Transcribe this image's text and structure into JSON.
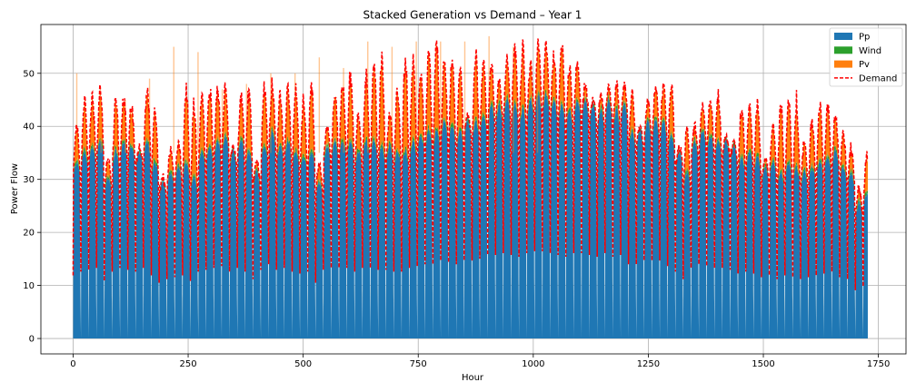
{
  "chart_data": {
    "type": "area",
    "stacked": true,
    "title": "Stacked Generation vs Demand – Year 1",
    "xlabel": "Hour",
    "ylabel": "Power Flow",
    "xlim": [
      -70,
      1810
    ],
    "ylim": [
      -2.9,
      59.2
    ],
    "xticks": [
      0,
      250,
      500,
      750,
      1000,
      1250,
      1500,
      1750
    ],
    "yticks": [
      0,
      10,
      20,
      30,
      40,
      50
    ],
    "grid": true,
    "legend_position": "top-right",
    "hours": 1728,
    "series": [
      {
        "name": "Pp",
        "color": "#1f77b4",
        "kind": "area",
        "daily_base": [
          34,
          36,
          37,
          38,
          31,
          36,
          38,
          37,
          36,
          38,
          34,
          30,
          32,
          33,
          34,
          31,
          36,
          37,
          38,
          39,
          36,
          38,
          36,
          32,
          37,
          40,
          37,
          38,
          36,
          35,
          36,
          30,
          37,
          38,
          38,
          38,
          36,
          38,
          38,
          37,
          37,
          36,
          36,
          38,
          39,
          40,
          40,
          42,
          41,
          40,
          42,
          42,
          43,
          45,
          45,
          46,
          45,
          44,
          46,
          47,
          47,
          46,
          45,
          44,
          46,
          46,
          45,
          44,
          46,
          44,
          45,
          40,
          40,
          42,
          42,
          42,
          39,
          36,
          32,
          38,
          40,
          39,
          38,
          38,
          37,
          35,
          36,
          35,
          33,
          34,
          32,
          34,
          33,
          32,
          33,
          34,
          35,
          36,
          33,
          32,
          26,
          28
        ]
      },
      {
        "name": "Wind",
        "color": "#2ca02c",
        "kind": "area"
      },
      {
        "name": "Pv",
        "color": "#ff7f0e",
        "kind": "area",
        "daily_peak": [
          40,
          45,
          46,
          47,
          34,
          45,
          46,
          44,
          36,
          47,
          43,
          30,
          36,
          37,
          48,
          44,
          46,
          48,
          47,
          48,
          35,
          46,
          47,
          33,
          48,
          48,
          46,
          48,
          47,
          46,
          48,
          33,
          40,
          47,
          49,
          50,
          42,
          50,
          52,
          53,
          42,
          47,
          53,
          53,
          51,
          54,
          56,
          53,
          53,
          51,
          40,
          54,
          53,
          52,
          49,
          53,
          55,
          55,
          52,
          56,
          56,
          54,
          56,
          52,
          53,
          48,
          36,
          46,
          48,
          48,
          48,
          47,
          36,
          45,
          48,
          48,
          48,
          36,
          40,
          40,
          44,
          45,
          46,
          34,
          37,
          44,
          44,
          44,
          34,
          40,
          44,
          46,
          45,
          37,
          42,
          44,
          44,
          42,
          39,
          36,
          28,
          35
        ]
      },
      {
        "name": "Demand",
        "color": "#ff0000",
        "kind": "line",
        "style": "dashed"
      }
    ],
    "pv_spike_tops": [
      50,
      45,
      45,
      49,
      55,
      54,
      47,
      48,
      50,
      50,
      53,
      51,
      56,
      55,
      56,
      56,
      56,
      57,
      55,
      54
    ]
  }
}
